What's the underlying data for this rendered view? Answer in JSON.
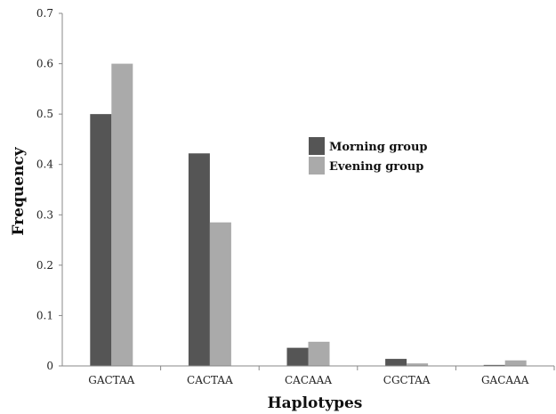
{
  "chart_data": {
    "type": "bar",
    "categories": [
      "GACTAA",
      "CACTAA",
      "CACAAA",
      "CGCTAA",
      "GACAAA"
    ],
    "series": [
      {
        "name": "Morning group",
        "color": "#555555",
        "values": [
          0.5,
          0.422,
          0.036,
          0.014,
          0.002
        ]
      },
      {
        "name": "Evening group",
        "color": "#aaaaaa",
        "values": [
          0.6,
          0.285,
          0.048,
          0.005,
          0.011
        ]
      }
    ],
    "xlabel": "Haplotypes",
    "ylabel": "Frequency",
    "ylim": [
      0,
      0.7
    ],
    "yticks": [
      "0",
      "0.1",
      "0.2",
      "0.3",
      "0.4",
      "0.5",
      "0.6",
      "0.7"
    ],
    "grid": false,
    "legend_position": "center-right"
  }
}
